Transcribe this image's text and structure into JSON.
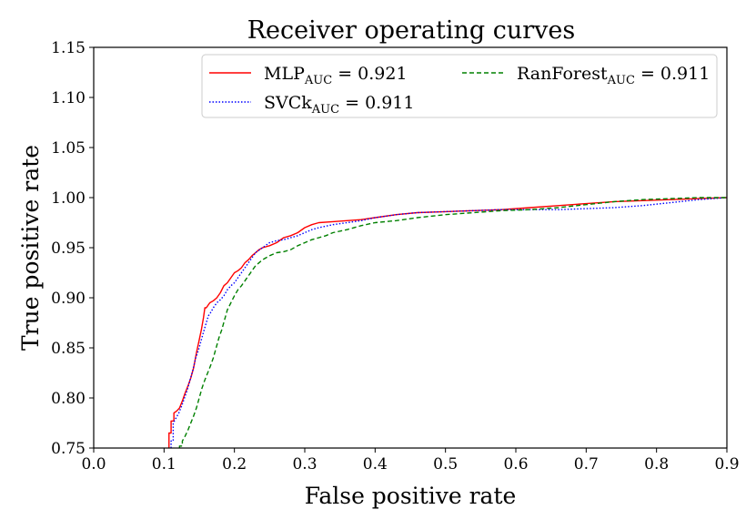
{
  "chart_data": {
    "type": "line",
    "title": "Receiver operating curves",
    "xlabel": "False positive rate",
    "ylabel": "True positive rate",
    "xlim": [
      0.0,
      0.9
    ],
    "ylim": [
      0.75,
      1.15
    ],
    "xticks": [
      "0.0",
      "0.1",
      "0.2",
      "0.3",
      "0.4",
      "0.5",
      "0.6",
      "0.7",
      "0.8",
      "0.9"
    ],
    "yticks": [
      "0.75",
      "0.80",
      "0.85",
      "0.90",
      "0.95",
      "1.00",
      "1.05",
      "1.10",
      "1.15"
    ],
    "grid": false,
    "legend_position": "top-right",
    "series": [
      {
        "name": "MLP",
        "subscript": "AUC",
        "suffix": " = 0.921",
        "color": "#ff0000",
        "style": "solid",
        "x": [
          0.107,
          0.107,
          0.11,
          0.11,
          0.114,
          0.114,
          0.118,
          0.122,
          0.126,
          0.13,
          0.134,
          0.138,
          0.142,
          0.146,
          0.15,
          0.153,
          0.156,
          0.158,
          0.16,
          0.165,
          0.17,
          0.175,
          0.18,
          0.185,
          0.19,
          0.195,
          0.2,
          0.205,
          0.21,
          0.215,
          0.22,
          0.225,
          0.23,
          0.235,
          0.24,
          0.25,
          0.26,
          0.27,
          0.28,
          0.29,
          0.3,
          0.31,
          0.32,
          0.34,
          0.36,
          0.38,
          0.4,
          0.43,
          0.46,
          0.5,
          0.54,
          0.58,
          0.62,
          0.66,
          0.7,
          0.74,
          0.78,
          0.82,
          0.86,
          0.9
        ],
        "y": [
          0.75,
          0.765,
          0.765,
          0.777,
          0.777,
          0.785,
          0.787,
          0.79,
          0.797,
          0.805,
          0.812,
          0.82,
          0.83,
          0.845,
          0.858,
          0.868,
          0.88,
          0.89,
          0.89,
          0.895,
          0.897,
          0.9,
          0.905,
          0.912,
          0.915,
          0.92,
          0.925,
          0.927,
          0.93,
          0.935,
          0.938,
          0.942,
          0.945,
          0.948,
          0.95,
          0.952,
          0.955,
          0.96,
          0.962,
          0.965,
          0.97,
          0.973,
          0.975,
          0.976,
          0.977,
          0.978,
          0.98,
          0.983,
          0.985,
          0.986,
          0.987,
          0.988,
          0.99,
          0.992,
          0.994,
          0.996,
          0.997,
          0.998,
          0.999,
          1.0
        ]
      },
      {
        "name": "SVCk",
        "subscript": "AUC",
        "suffix": " = 0.911",
        "color": "#0000ff",
        "style": "dotted",
        "x": [
          0.11,
          0.11,
          0.113,
          0.113,
          0.117,
          0.121,
          0.125,
          0.129,
          0.133,
          0.137,
          0.141,
          0.145,
          0.149,
          0.153,
          0.157,
          0.16,
          0.163,
          0.166,
          0.17,
          0.175,
          0.18,
          0.185,
          0.19,
          0.195,
          0.2,
          0.205,
          0.21,
          0.215,
          0.22,
          0.225,
          0.23,
          0.24,
          0.25,
          0.26,
          0.27,
          0.28,
          0.29,
          0.3,
          0.31,
          0.32,
          0.34,
          0.36,
          0.38,
          0.4,
          0.43,
          0.46,
          0.5,
          0.54,
          0.58,
          0.62,
          0.66,
          0.7,
          0.74,
          0.78,
          0.82,
          0.86,
          0.9
        ],
        "y": [
          0.75,
          0.757,
          0.757,
          0.775,
          0.78,
          0.785,
          0.792,
          0.8,
          0.808,
          0.818,
          0.828,
          0.84,
          0.848,
          0.858,
          0.868,
          0.875,
          0.882,
          0.885,
          0.89,
          0.895,
          0.898,
          0.902,
          0.908,
          0.912,
          0.915,
          0.92,
          0.925,
          0.93,
          0.935,
          0.94,
          0.945,
          0.95,
          0.955,
          0.957,
          0.958,
          0.96,
          0.962,
          0.965,
          0.968,
          0.97,
          0.973,
          0.975,
          0.977,
          0.98,
          0.983,
          0.985,
          0.986,
          0.987,
          0.988,
          0.988,
          0.988,
          0.989,
          0.99,
          0.992,
          0.995,
          0.998,
          1.0
        ]
      },
      {
        "name": "RanForest",
        "subscript": "AUC",
        "suffix": " = 0.911",
        "color": "#008000",
        "style": "dashed",
        "x": [
          0.122,
          0.122,
          0.126,
          0.126,
          0.13,
          0.134,
          0.138,
          0.142,
          0.146,
          0.15,
          0.154,
          0.158,
          0.162,
          0.166,
          0.17,
          0.174,
          0.178,
          0.182,
          0.186,
          0.19,
          0.195,
          0.2,
          0.205,
          0.21,
          0.215,
          0.22,
          0.225,
          0.23,
          0.24,
          0.25,
          0.26,
          0.27,
          0.28,
          0.29,
          0.3,
          0.31,
          0.32,
          0.33,
          0.34,
          0.36,
          0.38,
          0.4,
          0.43,
          0.46,
          0.5,
          0.54,
          0.58,
          0.62,
          0.66,
          0.7,
          0.74,
          0.78,
          0.82,
          0.86,
          0.9
        ],
        "y": [
          0.75,
          0.752,
          0.752,
          0.757,
          0.762,
          0.768,
          0.775,
          0.782,
          0.79,
          0.8,
          0.81,
          0.818,
          0.825,
          0.832,
          0.84,
          0.85,
          0.86,
          0.868,
          0.878,
          0.888,
          0.895,
          0.902,
          0.908,
          0.912,
          0.917,
          0.922,
          0.927,
          0.932,
          0.938,
          0.942,
          0.945,
          0.946,
          0.948,
          0.952,
          0.955,
          0.958,
          0.96,
          0.962,
          0.965,
          0.968,
          0.972,
          0.975,
          0.977,
          0.98,
          0.983,
          0.985,
          0.987,
          0.988,
          0.99,
          0.993,
          0.996,
          0.998,
          0.999,
          1.0,
          1.0
        ]
      }
    ]
  }
}
